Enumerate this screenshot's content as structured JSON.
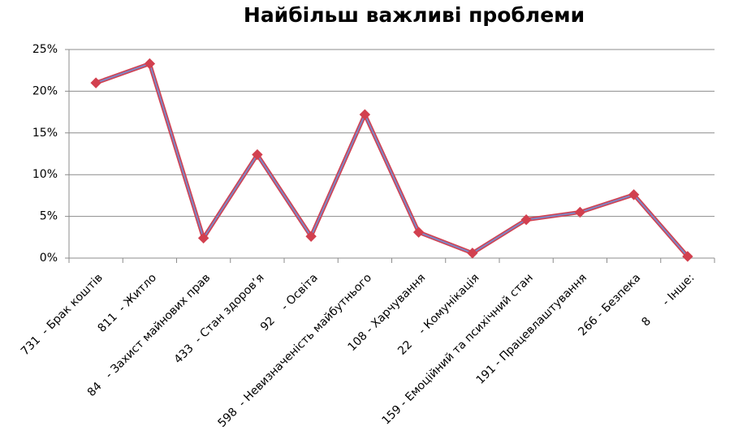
{
  "chart_data": {
    "type": "line",
    "title": "Найбільш важливі проблеми",
    "categories": [
      "731  - Брак коштів",
      "811  - Житло",
      "84   - Захист майнових прав",
      "433  - Стан здоров’я",
      "92    - Освіта",
      "598  - Невизначеність майбутнього",
      "108 - Харчування",
      "22    - Комунікація",
      "159 - Емоційний та психічний стан",
      "191 - Працевлаштування",
      "266 - Безпека",
      "8      - Інше:"
    ],
    "series": [
      {
        "color": "#d2404f",
        "values": [
          21.0,
          23.3,
          2.4,
          12.4,
          2.6,
          17.2,
          3.1,
          0.6,
          4.6,
          5.5,
          7.6,
          0.2
        ]
      }
    ],
    "ylim": [
      0,
      25
    ],
    "yticks": [
      {
        "value": 0,
        "label": "0%"
      },
      {
        "value": 5,
        "label": "5%"
      },
      {
        "value": 10,
        "label": "10%"
      },
      {
        "value": 15,
        "label": "15%"
      },
      {
        "value": 20,
        "label": "20%"
      },
      {
        "value": 25,
        "label": "25%"
      }
    ],
    "grid": true
  }
}
